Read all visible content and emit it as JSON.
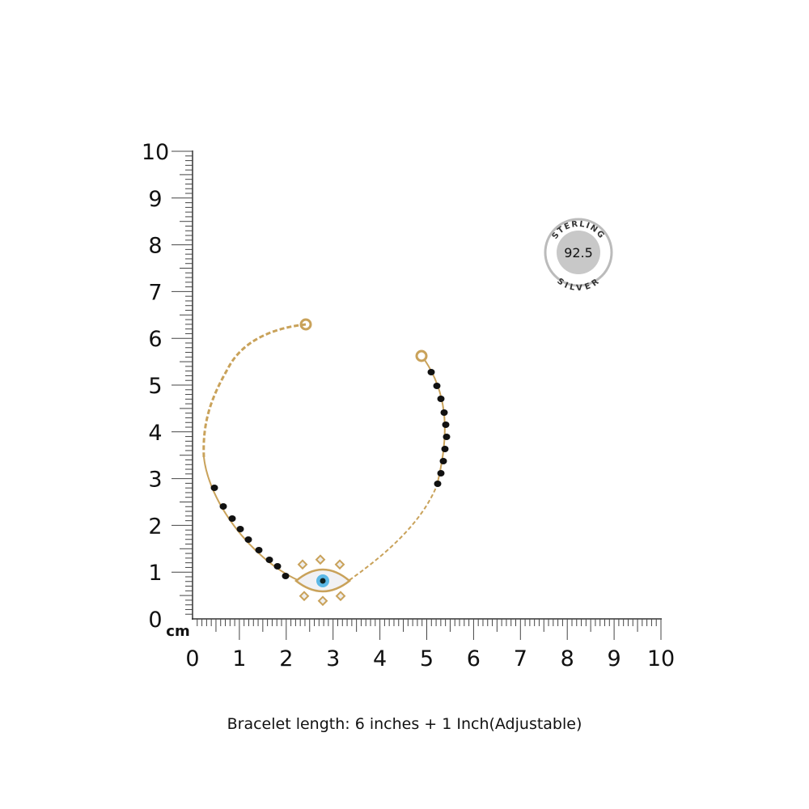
{
  "ruler": {
    "unit": "cm",
    "y_labels": [
      0,
      1,
      2,
      3,
      4,
      5,
      6,
      7,
      8,
      9,
      10
    ],
    "x_labels": [
      0,
      1,
      2,
      3,
      4,
      5,
      6,
      7,
      8,
      9,
      10
    ]
  },
  "badge": {
    "top": "STERLING",
    "center": "92.5",
    "bottom": "SILVER"
  },
  "caption": "Bracelet length: 6 inches + 1 Inch(Adjustable)"
}
